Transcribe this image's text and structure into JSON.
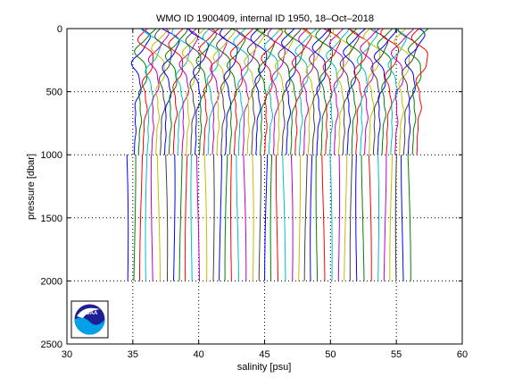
{
  "chart_data": {
    "type": "line",
    "title": "WMO ID 1900409, internal ID 1950, 18–Oct–2018",
    "xlabel": "salinity [psu]",
    "ylabel": "pressure [dbar]",
    "xlim": [
      30,
      60
    ],
    "ylim": [
      0,
      2500
    ],
    "y_reversed": true,
    "grid": true,
    "x_ticks": [
      "30",
      "35",
      "40",
      "45",
      "50",
      "55",
      "60"
    ],
    "y_ticks": [
      "0",
      "500",
      "1000",
      "1500",
      "2000",
      "2500"
    ],
    "profile_offset_psu": 0.5,
    "profile_count": 44,
    "upper_profile_count": 66,
    "upper_start_salinity": 35.1,
    "lower_start_salinity": 34.6,
    "colors": [
      "#0000ff",
      "#008000",
      "#ff0000",
      "#00bfbf",
      "#bf00bf",
      "#bfbf00",
      "#404040"
    ],
    "logo_text": "NOAA"
  }
}
